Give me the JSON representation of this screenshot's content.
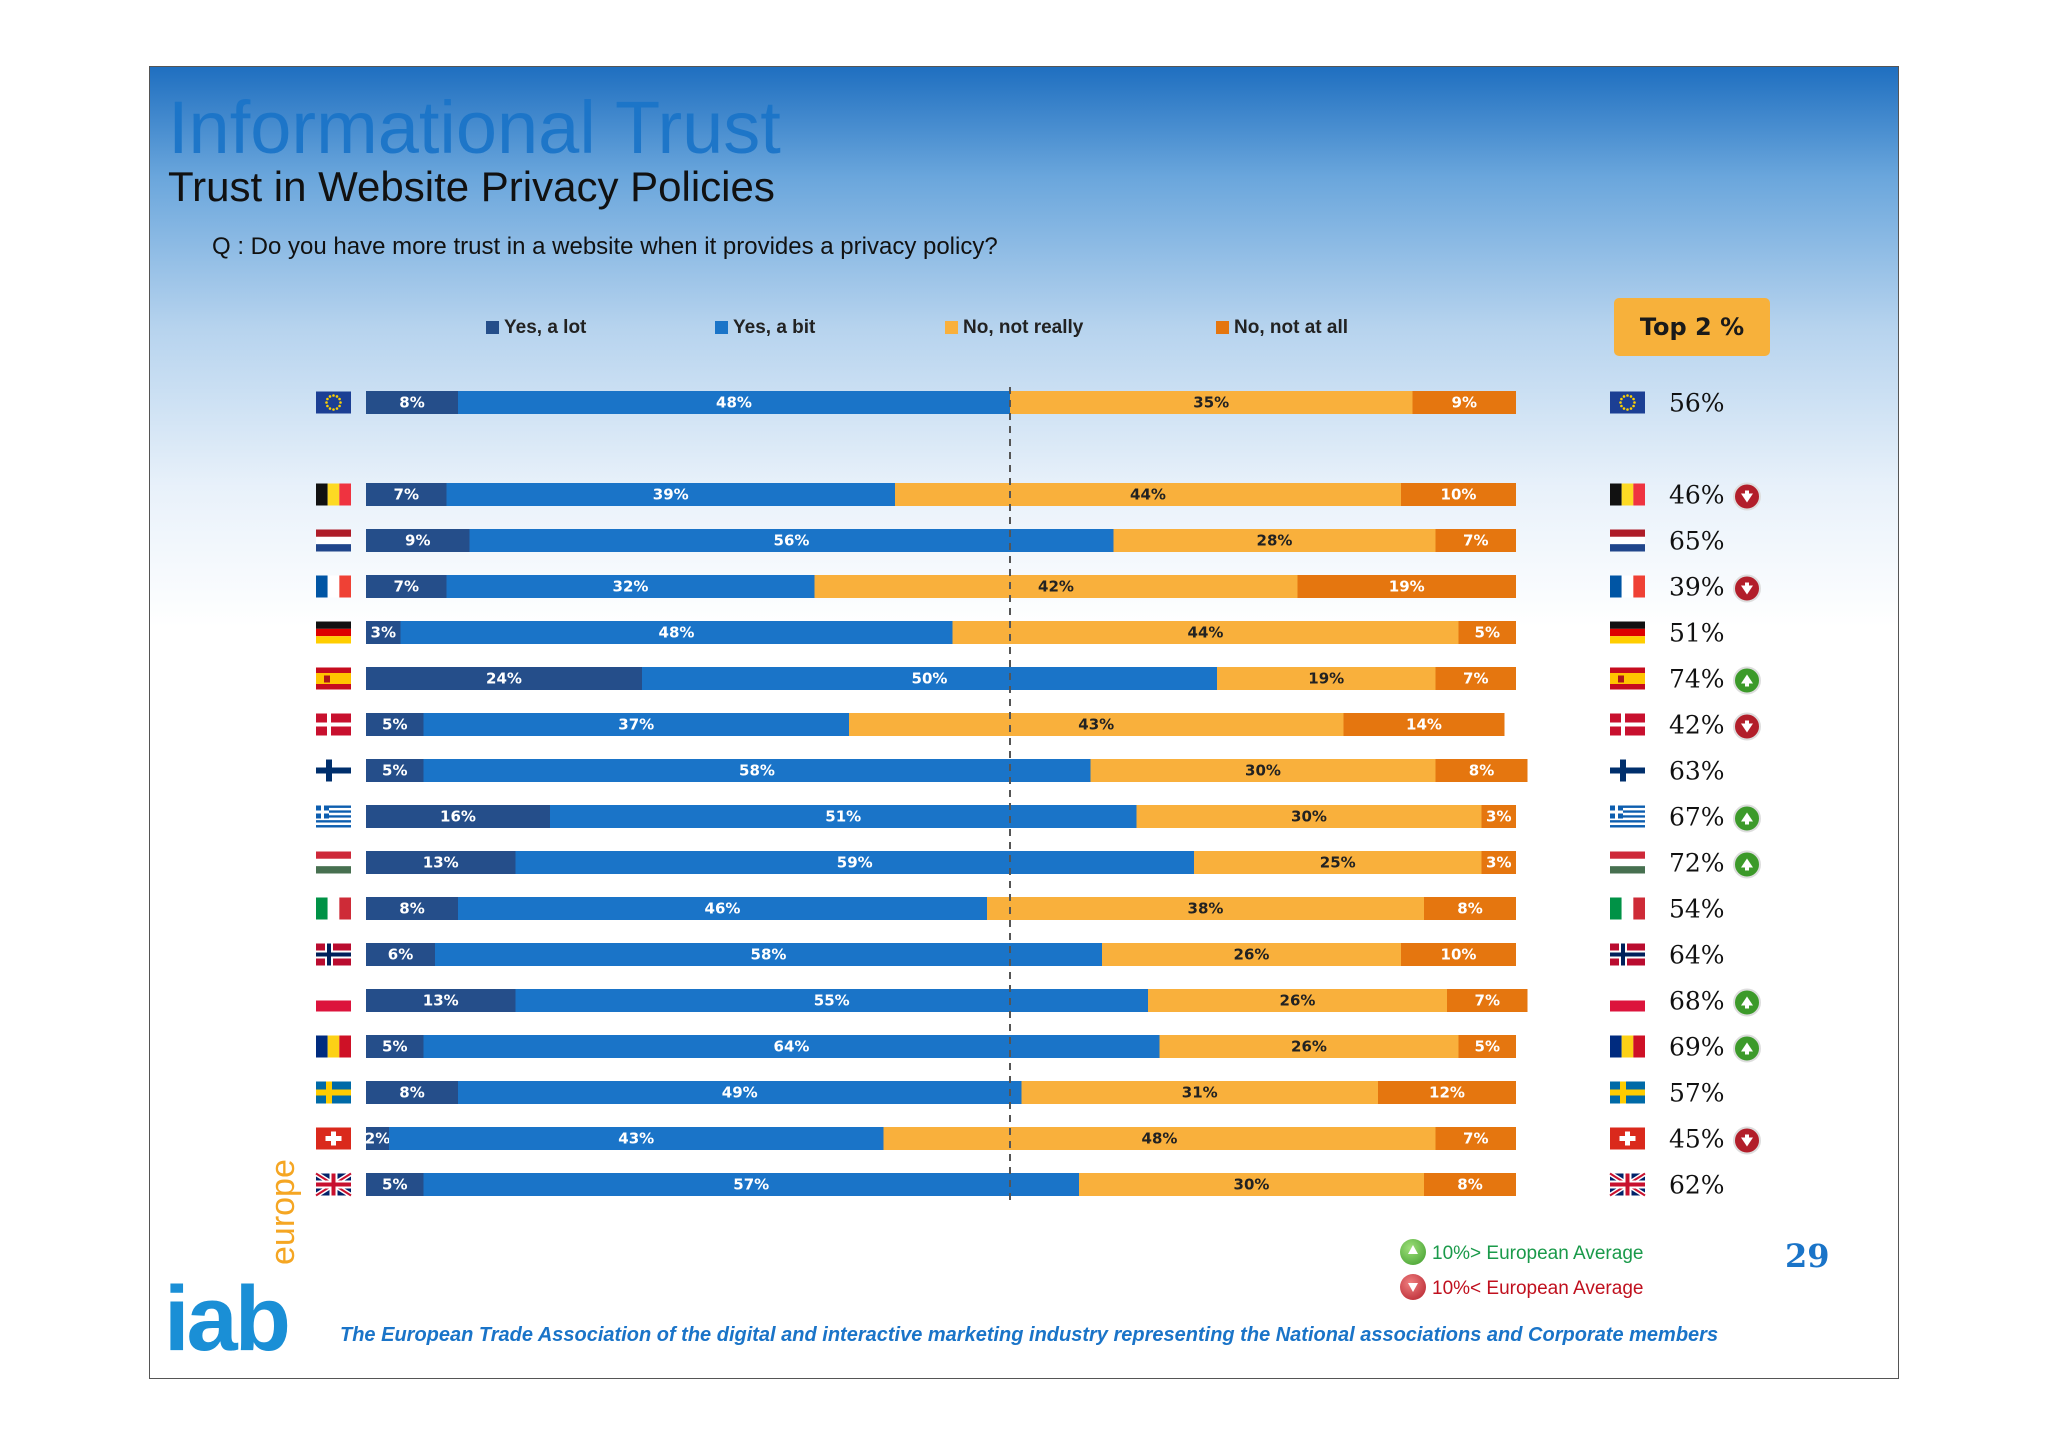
{
  "slide": {
    "title": "Informational Trust",
    "subtitle": "Trust in Website Privacy Policies",
    "question": "Q : Do you have more trust in a website when it provides a privacy policy?",
    "top2_header": "Top 2 %",
    "page_number": "29",
    "note_up": "10%> European Average",
    "note_down": "10%< European Average",
    "logo_main": "iab",
    "logo_sub": "europe",
    "footer": "The European Trade Association of the digital and interactive marketing industry representing the National associations and Corporate members"
  },
  "legend": {
    "yes_lot": "Yes, a lot",
    "yes_bit": "Yes, a bit",
    "no_really": "No, not really",
    "no_all": "No, not at all"
  },
  "colors": {
    "yes_lot": "#254e8a",
    "yes_bit": "#1a74c8",
    "no_really": "#f9b03c",
    "no_all": "#e5760f",
    "top2_badge": "#f7b13b",
    "up": "#3c9a2a",
    "down": "#b21e2a"
  },
  "chart_data": {
    "type": "bar",
    "orientation": "horizontal",
    "stacked": true,
    "categories": [
      "EU",
      "Belgium",
      "Netherlands",
      "France",
      "Germany",
      "Spain",
      "Denmark",
      "Finland",
      "Greece",
      "Hungary",
      "Italy",
      "Norway",
      "Poland",
      "Romania",
      "Sweden",
      "Switzerland",
      "UK"
    ],
    "series": [
      {
        "name": "Yes, a lot",
        "values": [
          8,
          7,
          9,
          7,
          3,
          24,
          5,
          5,
          16,
          13,
          8,
          6,
          13,
          5,
          8,
          2,
          5
        ]
      },
      {
        "name": "Yes, a bit",
        "values": [
          48,
          39,
          56,
          32,
          48,
          50,
          37,
          58,
          51,
          59,
          46,
          58,
          55,
          64,
          49,
          43,
          57
        ]
      },
      {
        "name": "No, not really",
        "values": [
          35,
          44,
          28,
          42,
          44,
          19,
          43,
          30,
          30,
          25,
          38,
          26,
          26,
          26,
          31,
          48,
          30
        ]
      },
      {
        "name": "No, not at all",
        "values": [
          9,
          10,
          7,
          19,
          5,
          7,
          14,
          8,
          3,
          3,
          8,
          10,
          7,
          5,
          12,
          7,
          8
        ]
      }
    ],
    "top2": [
      "56%",
      "46%",
      "65%",
      "39%",
      "51%",
      "74%",
      "42%",
      "63%",
      "67%",
      "72%",
      "54%",
      "64%",
      "68%",
      "69%",
      "57%",
      "45%",
      "62%"
    ],
    "top2_indicator": [
      "",
      "down",
      "",
      "down",
      "",
      "up",
      "down",
      "",
      "up",
      "up",
      "",
      "",
      "up",
      "up",
      "",
      "down",
      ""
    ],
    "flags": [
      "eu-flag-icon",
      "belgium-flag-icon",
      "netherlands-flag-icon",
      "france-flag-icon",
      "germany-flag-icon",
      "spain-flag-icon",
      "denmark-flag-icon",
      "finland-flag-icon",
      "greece-flag-icon",
      "hungary-flag-icon",
      "italy-flag-icon",
      "norway-flag-icon",
      "poland-flag-icon",
      "romania-flag-icon",
      "sweden-flag-icon",
      "switzerland-flag-icon",
      "uk-flag-icon"
    ],
    "xlim": [
      0,
      100
    ],
    "reference_line": "dashed line at the Yes/No divide",
    "legend_position": "top"
  }
}
